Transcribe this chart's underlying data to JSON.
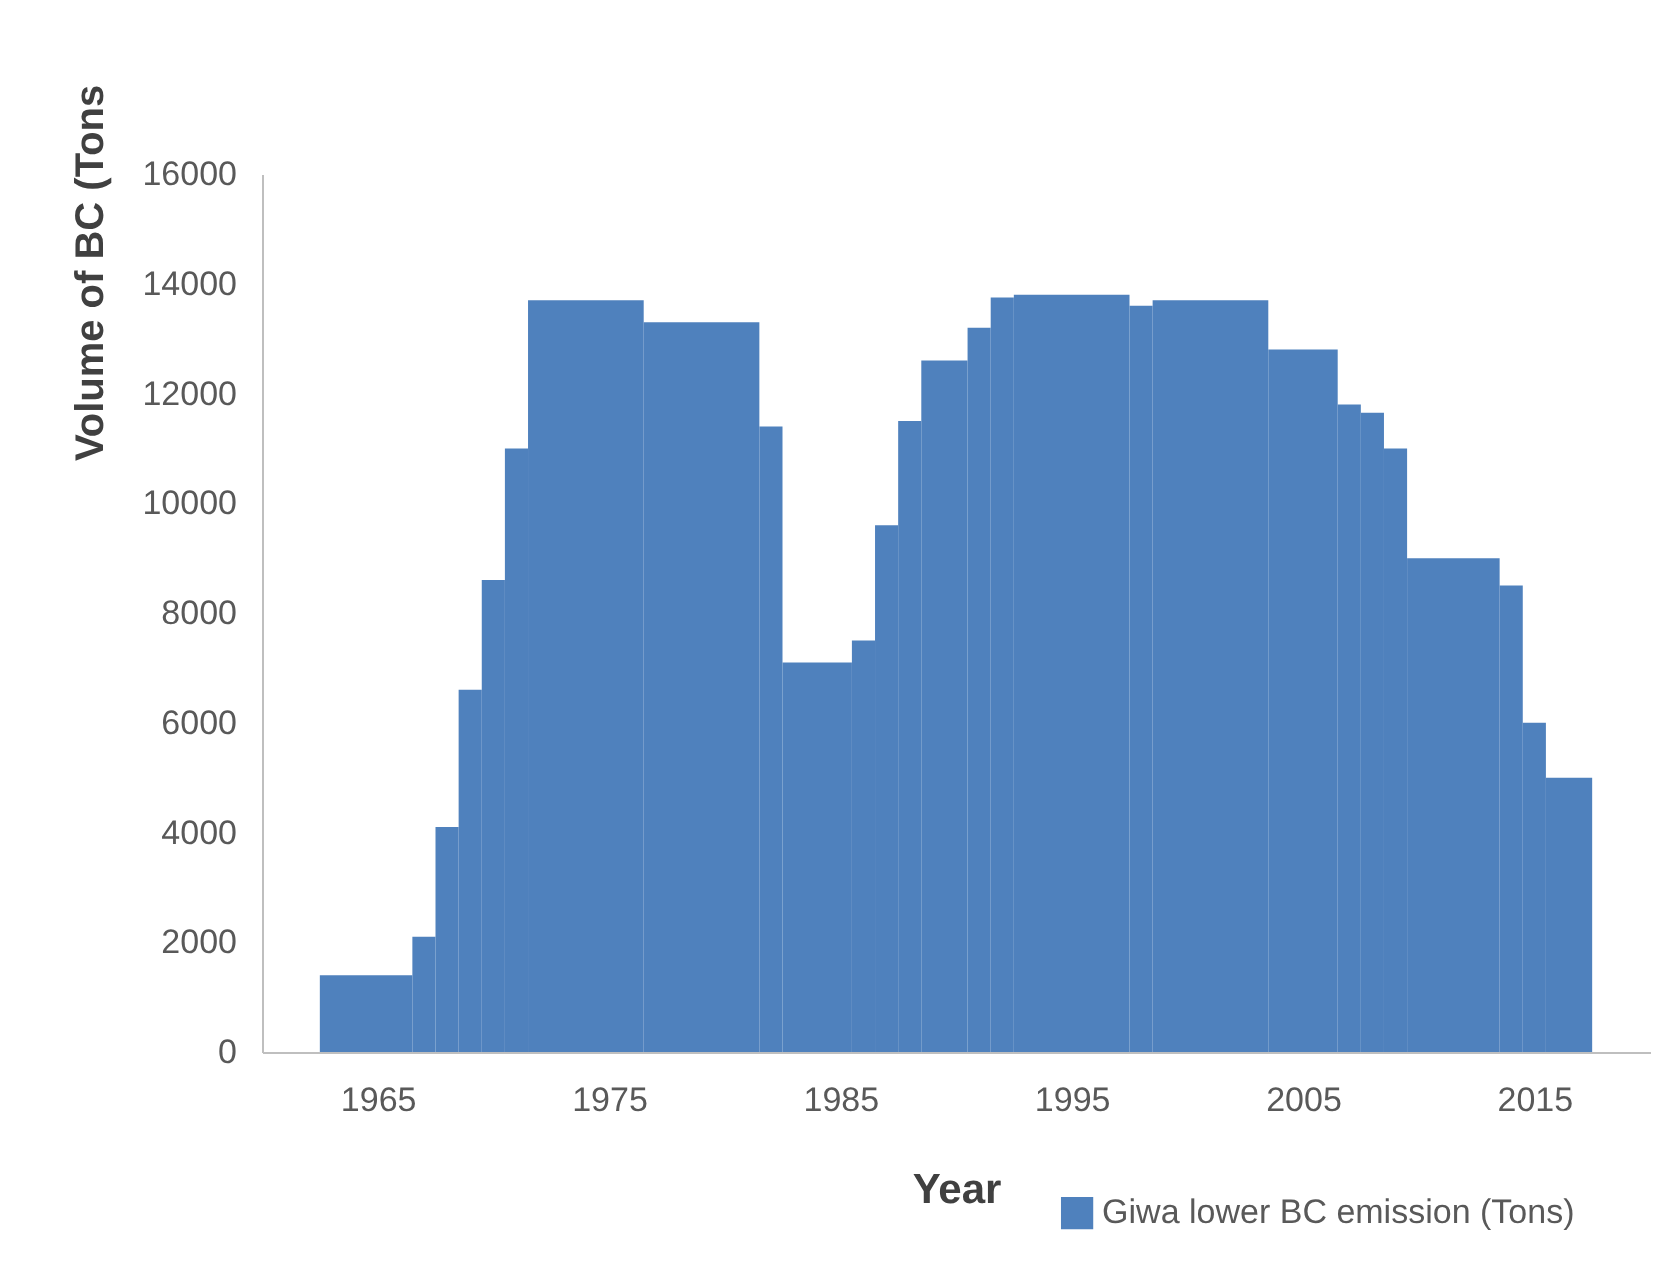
{
  "chart_data": {
    "type": "histogram",
    "xlabel": "Year",
    "ylabel": "Volume of BC (Tons",
    "bins": [
      1962.5,
      1966.5,
      1967.5,
      1968.5,
      1969.5,
      1970.5,
      1971.5,
      1976.5,
      1981.5,
      1982.5,
      1985.5,
      1986.5,
      1987.5,
      1988.5,
      1990.5,
      1991.5,
      1992.5,
      1997.5,
      1998.5,
      2003.5,
      2006.5,
      2007.5,
      2008.5,
      2009.5,
      2013.5,
      2014.5,
      2015.5,
      2017.5
    ],
    "series": [
      {
        "name": "Giwa lower  BC emission (Tons)",
        "color": "#4f81bd",
        "values": [
          1400,
          2100,
          4100,
          6600,
          8600,
          11000,
          13700,
          13300,
          11400,
          7100,
          7500,
          9600,
          11500,
          12600,
          13200,
          13750,
          13800,
          13600,
          13700,
          12800,
          11800,
          11650,
          11000,
          9000,
          8500,
          6000,
          5000
        ]
      }
    ],
    "xlim": [
      1960,
      2020
    ],
    "xticks": [
      1965,
      1975,
      1985,
      1995,
      2005,
      2015
    ],
    "ylim": [
      0,
      16000
    ],
    "yticks": [
      0,
      2000,
      4000,
      6000,
      8000,
      10000,
      12000,
      14000,
      16000
    ],
    "legend": "bottom right"
  }
}
